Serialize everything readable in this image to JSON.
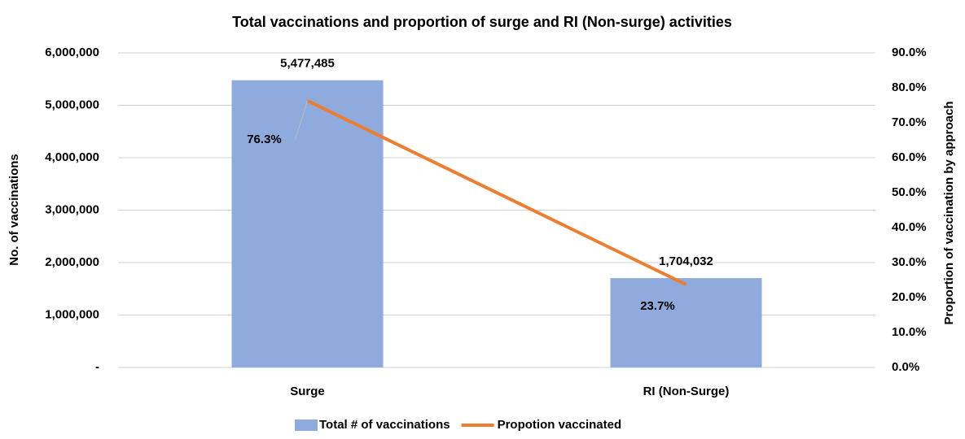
{
  "chart_data": {
    "type": "bar",
    "title": "Total vaccinations and proportion of surge and RI (Non-surge) activities",
    "y_label": "No. of vaccinations",
    "y2_label": "Proportion of  vaccination by approach",
    "categories": [
      "Surge",
      "RI (Non-Surge)"
    ],
    "series": [
      {
        "name": "Total # of vaccinations",
        "type": "bar",
        "color": "#8faadc",
        "values": [
          5477485,
          1704032
        ],
        "value_labels": [
          "5,477,485",
          "1,704,032"
        ]
      },
      {
        "name": "Propotion vaccinated",
        "type": "line",
        "axis": "y2",
        "color": "#ed7d31",
        "values": [
          76.3,
          23.7
        ],
        "value_labels": [
          "76.3%",
          "23.7%"
        ]
      }
    ],
    "ylim": [
      0,
      6000000
    ],
    "yticks": [
      {
        "value": 0,
        "label": "-"
      },
      {
        "value": 1000000,
        "label": "1,000,000"
      },
      {
        "value": 2000000,
        "label": "2,000,000"
      },
      {
        "value": 3000000,
        "label": "3,000,000"
      },
      {
        "value": 4000000,
        "label": "4,000,000"
      },
      {
        "value": 5000000,
        "label": "5,000,000"
      },
      {
        "value": 6000000,
        "label": "6,000,000"
      }
    ],
    "y2lim": [
      0,
      90
    ],
    "y2ticks": [
      {
        "value": 0,
        "label": "0.0%"
      },
      {
        "value": 10,
        "label": "10.0%"
      },
      {
        "value": 20,
        "label": "20.0%"
      },
      {
        "value": 30,
        "label": "30.0%"
      },
      {
        "value": 40,
        "label": "40.0%"
      },
      {
        "value": 50,
        "label": "50.0%"
      },
      {
        "value": 60,
        "label": "60.0%"
      },
      {
        "value": 70,
        "label": "70.0%"
      },
      {
        "value": 80,
        "label": "80.0%"
      },
      {
        "value": 90,
        "label": "90.0%"
      }
    ],
    "grid": true,
    "legend": "bottom"
  }
}
